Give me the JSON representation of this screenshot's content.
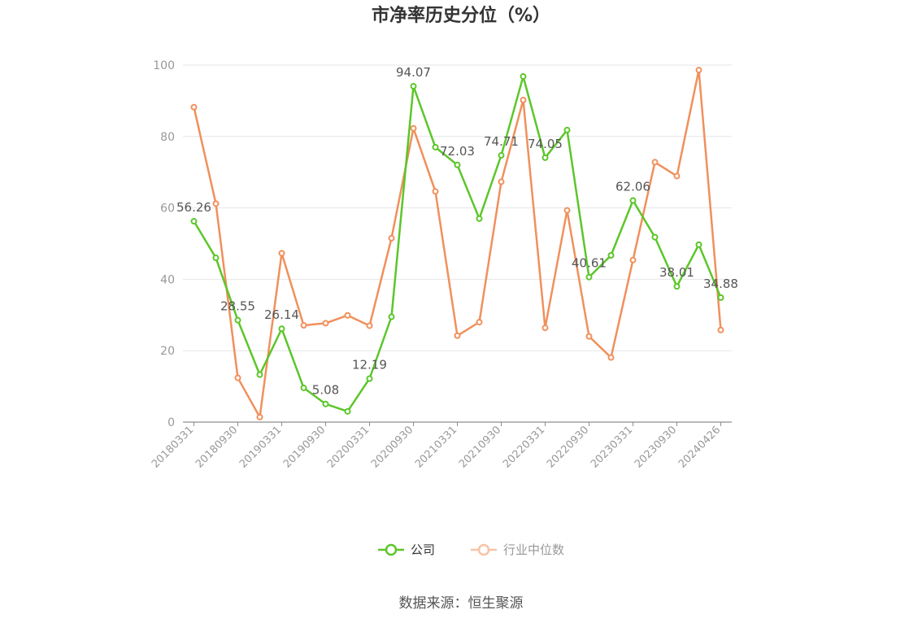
{
  "chart_data": {
    "type": "line",
    "title": "市净率历史分位（%）",
    "source": "数据来源：恒生聚源",
    "ylim": [
      0,
      100
    ],
    "yticks": [
      0,
      20,
      40,
      60,
      80,
      100
    ],
    "grid": true,
    "legend_position": "bottom",
    "x": [
      "20180331",
      "20180630",
      "20180930",
      "20181231",
      "20190331",
      "20190630",
      "20190930",
      "20191231",
      "20200331",
      "20200630",
      "20200930",
      "20201231",
      "20210331",
      "20210630",
      "20210930",
      "20211231",
      "20220331",
      "20220630",
      "20220930",
      "20221231",
      "20230331",
      "20230630",
      "20230930",
      "20231231",
      "20240426"
    ],
    "xtick_labels": [
      "20180331",
      "20180930",
      "20190331",
      "20190930",
      "20200331",
      "20200930",
      "20210331",
      "20210930",
      "20220331",
      "20220930",
      "20230331",
      "20230930",
      "20240426"
    ],
    "series": [
      {
        "name": "公司",
        "color": "#5cc62a",
        "values": [
          56.26,
          46.0,
          28.55,
          13.3,
          26.14,
          9.6,
          5.08,
          3.0,
          12.19,
          29.5,
          94.07,
          77.0,
          72.03,
          57.0,
          74.71,
          96.8,
          74.05,
          81.8,
          40.61,
          46.7,
          62.06,
          51.8,
          38.01,
          49.7,
          34.88
        ],
        "labels": {
          "0": "56.26",
          "2": "28.55",
          "4": "26.14",
          "6": "5.08",
          "8": "12.19",
          "10": "94.07",
          "12": "72.03",
          "14": "74.71",
          "16": "74.05",
          "18": "40.61",
          "20": "62.06",
          "22": "38.01",
          "24": "34.88"
        }
      },
      {
        "name": "行业中位数",
        "color": "#f0905c",
        "values": [
          88.2,
          61.2,
          12.4,
          1.4,
          47.3,
          27.1,
          27.7,
          29.9,
          27.0,
          51.5,
          82.3,
          64.6,
          24.2,
          28.0,
          67.3,
          90.2,
          26.4,
          59.3,
          24.0,
          18.1,
          45.4,
          72.8,
          68.9,
          98.6,
          25.8
        ],
        "labels": {}
      }
    ]
  }
}
